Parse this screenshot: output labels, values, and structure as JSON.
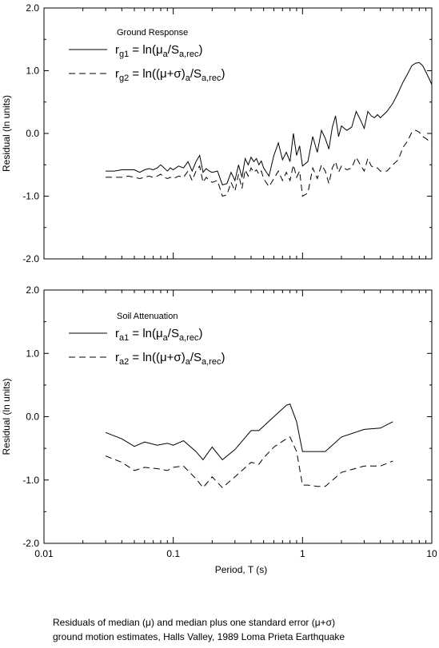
{
  "caption": {
    "line1": "Residuals of median (μ) and median plus one standard error (μ+σ)",
    "line2": "ground motion estimates, Halls Valley, 1989 Loma Prieta Earthquake"
  },
  "chart_data": [
    {
      "type": "line",
      "legend_title": "Ground Response",
      "legend_placement": "top-left",
      "xlabel": "",
      "ylabel": "Residual (ln units)",
      "xscale": "log",
      "xlim": [
        0.01,
        10
      ],
      "ylim": [
        -2.0,
        2.0
      ],
      "yticks": [
        "2.0",
        "1.0",
        "0.0",
        "-1.0",
        "-2.0"
      ],
      "xticks": [
        "0.01",
        "0.1",
        "1",
        "10"
      ],
      "grid": false,
      "series": [
        {
          "name_main": "r",
          "name_sub": "g1",
          "formula": [
            [
              "t",
              " = ln("
            ],
            [
              "t",
              "μ"
            ],
            [
              "s",
              "a"
            ],
            [
              "t",
              "/S"
            ],
            [
              "s",
              "a,rec"
            ],
            [
              "t",
              ")"
            ]
          ],
          "style": "solid",
          "color": "#000000",
          "x": [
            0.03,
            0.035,
            0.04,
            0.045,
            0.05,
            0.055,
            0.06,
            0.065,
            0.07,
            0.075,
            0.08,
            0.085,
            0.09,
            0.095,
            0.1,
            0.11,
            0.12,
            0.13,
            0.14,
            0.15,
            0.16,
            0.17,
            0.18,
            0.19,
            0.2,
            0.22,
            0.24,
            0.26,
            0.28,
            0.3,
            0.32,
            0.34,
            0.36,
            0.38,
            0.4,
            0.42,
            0.44,
            0.46,
            0.48,
            0.5,
            0.55,
            0.6,
            0.65,
            0.7,
            0.75,
            0.8,
            0.85,
            0.9,
            0.95,
            1.0,
            1.1,
            1.2,
            1.3,
            1.4,
            1.5,
            1.6,
            1.7,
            1.8,
            1.9,
            2.0,
            2.2,
            2.4,
            2.6,
            2.8,
            3.0,
            3.2,
            3.4,
            3.6,
            3.8,
            4.0,
            4.5,
            5.0,
            5.5,
            6.0,
            6.5,
            7.0,
            7.5,
            8.0,
            8.5,
            9.0,
            9.5,
            10.0
          ],
          "y": [
            -0.6,
            -0.6,
            -0.58,
            -0.58,
            -0.58,
            -0.62,
            -0.58,
            -0.56,
            -0.58,
            -0.55,
            -0.5,
            -0.55,
            -0.6,
            -0.55,
            -0.58,
            -0.52,
            -0.55,
            -0.45,
            -0.6,
            -0.45,
            -0.35,
            -0.62,
            -0.56,
            -0.6,
            -0.62,
            -0.6,
            -0.82,
            -0.8,
            -0.62,
            -0.75,
            -0.5,
            -0.7,
            -0.4,
            -0.5,
            -0.38,
            -0.45,
            -0.4,
            -0.5,
            -0.44,
            -0.55,
            -0.68,
            -0.35,
            -0.15,
            -0.42,
            -0.3,
            -0.45,
            0.0,
            -0.35,
            -0.2,
            -0.52,
            -0.45,
            -0.05,
            -0.3,
            0.05,
            -0.08,
            -0.25,
            0.1,
            0.28,
            -0.05,
            0.12,
            0.05,
            0.1,
            0.35,
            0.22,
            0.08,
            0.35,
            0.28,
            0.25,
            0.3,
            0.25,
            0.35,
            0.48,
            0.65,
            0.82,
            0.95,
            1.08,
            1.12,
            1.13,
            1.08,
            0.98,
            0.88,
            0.78
          ]
        },
        {
          "name_main": "r",
          "name_sub": "g2",
          "formula": [
            [
              "t",
              " = ln(("
            ],
            [
              "t",
              "μ+σ"
            ],
            [
              "t",
              ")"
            ],
            [
              "s",
              "a"
            ],
            [
              "t",
              "/S"
            ],
            [
              "s",
              "a,rec"
            ],
            [
              "t",
              ")"
            ]
          ],
          "style": "dashed",
          "color": "#000000",
          "x": [
            0.03,
            0.035,
            0.04,
            0.045,
            0.05,
            0.055,
            0.06,
            0.065,
            0.07,
            0.075,
            0.08,
            0.085,
            0.09,
            0.095,
            0.1,
            0.11,
            0.12,
            0.13,
            0.14,
            0.15,
            0.16,
            0.17,
            0.18,
            0.19,
            0.2,
            0.22,
            0.24,
            0.26,
            0.28,
            0.3,
            0.32,
            0.34,
            0.36,
            0.38,
            0.4,
            0.42,
            0.44,
            0.46,
            0.48,
            0.5,
            0.55,
            0.6,
            0.65,
            0.7,
            0.75,
            0.8,
            0.85,
            0.9,
            0.95,
            1.0,
            1.1,
            1.2,
            1.3,
            1.4,
            1.5,
            1.6,
            1.7,
            1.8,
            1.9,
            2.0,
            2.2,
            2.4,
            2.6,
            2.8,
            3.0,
            3.2,
            3.4,
            3.6,
            3.8,
            4.0,
            4.5,
            5.0,
            5.5,
            6.0,
            6.5,
            7.0,
            7.5,
            8.0,
            8.5,
            9.0,
            9.5,
            10.0
          ],
          "y": [
            -0.7,
            -0.7,
            -0.7,
            -0.68,
            -0.7,
            -0.72,
            -0.7,
            -0.68,
            -0.7,
            -0.68,
            -0.65,
            -0.7,
            -0.72,
            -0.7,
            -0.72,
            -0.68,
            -0.7,
            -0.6,
            -0.75,
            -0.6,
            -0.52,
            -0.78,
            -0.7,
            -0.75,
            -0.78,
            -0.75,
            -1.0,
            -0.98,
            -0.78,
            -0.92,
            -0.65,
            -0.88,
            -0.58,
            -0.68,
            -0.55,
            -0.62,
            -0.58,
            -0.65,
            -0.6,
            -0.72,
            -0.85,
            -0.72,
            -0.6,
            -0.75,
            -0.62,
            -0.75,
            -0.5,
            -0.7,
            -0.6,
            -1.0,
            -0.95,
            -0.55,
            -0.72,
            -0.5,
            -0.6,
            -0.8,
            -0.55,
            -0.45,
            -0.62,
            -0.52,
            -0.58,
            -0.55,
            -0.38,
            -0.5,
            -0.6,
            -0.4,
            -0.52,
            -0.55,
            -0.55,
            -0.6,
            -0.6,
            -0.5,
            -0.42,
            -0.22,
            -0.12,
            0.02,
            0.05,
            0.02,
            -0.05,
            -0.08,
            -0.12,
            -0.15
          ]
        }
      ]
    },
    {
      "type": "line",
      "legend_title": "Soil Attenuation",
      "legend_placement": "top-left",
      "xlabel": "Period, T (s)",
      "ylabel": "Residual (ln units)",
      "xscale": "log",
      "xlim": [
        0.01,
        10
      ],
      "ylim": [
        -2.0,
        2.0
      ],
      "yticks": [
        "2.0",
        "1.0",
        "0.0",
        "-1.0",
        "-2.0"
      ],
      "xticks": [
        "0.01",
        "0.1",
        "1",
        "10"
      ],
      "grid": false,
      "series": [
        {
          "name_main": "r",
          "name_sub": "a1",
          "formula": [
            [
              "t",
              " = ln("
            ],
            [
              "t",
              "μ"
            ],
            [
              "s",
              "a"
            ],
            [
              "t",
              "/S"
            ],
            [
              "s",
              "a,rec"
            ],
            [
              "t",
              ")"
            ]
          ],
          "style": "solid",
          "color": "#000000",
          "x": [
            0.03,
            0.04,
            0.05,
            0.06,
            0.075,
            0.09,
            0.1,
            0.12,
            0.15,
            0.17,
            0.2,
            0.24,
            0.3,
            0.4,
            0.46,
            0.5,
            0.6,
            0.75,
            0.8,
            0.9,
            1.0,
            1.1,
            1.3,
            1.5,
            2.0,
            3.0,
            4.0,
            5.0
          ],
          "y": [
            -0.25,
            -0.35,
            -0.47,
            -0.4,
            -0.45,
            -0.42,
            -0.45,
            -0.38,
            -0.55,
            -0.68,
            -0.48,
            -0.68,
            -0.52,
            -0.22,
            -0.22,
            -0.15,
            0.0,
            0.18,
            0.2,
            -0.08,
            -0.55,
            -0.55,
            -0.55,
            -0.55,
            -0.32,
            -0.2,
            -0.18,
            -0.08
          ]
        },
        {
          "name_main": "r",
          "name_sub": "a2",
          "formula": [
            [
              "t",
              " = ln(("
            ],
            [
              "t",
              "μ+σ"
            ],
            [
              "t",
              ")"
            ],
            [
              "s",
              "a"
            ],
            [
              "t",
              "/S"
            ],
            [
              "s",
              "a,rec"
            ],
            [
              "t",
              ")"
            ]
          ],
          "style": "dashed",
          "color": "#000000",
          "x": [
            0.03,
            0.04,
            0.05,
            0.06,
            0.075,
            0.09,
            0.1,
            0.12,
            0.15,
            0.17,
            0.2,
            0.24,
            0.3,
            0.4,
            0.46,
            0.5,
            0.6,
            0.75,
            0.8,
            0.9,
            1.0,
            1.1,
            1.3,
            1.5,
            2.0,
            3.0,
            4.0,
            5.0
          ],
          "y": [
            -0.62,
            -0.72,
            -0.85,
            -0.8,
            -0.82,
            -0.85,
            -0.8,
            -0.78,
            -0.98,
            -1.12,
            -0.95,
            -1.12,
            -0.95,
            -0.72,
            -0.75,
            -0.65,
            -0.48,
            -0.35,
            -0.32,
            -0.55,
            -1.08,
            -1.08,
            -1.1,
            -1.1,
            -0.88,
            -0.78,
            -0.78,
            -0.7
          ]
        }
      ]
    }
  ]
}
